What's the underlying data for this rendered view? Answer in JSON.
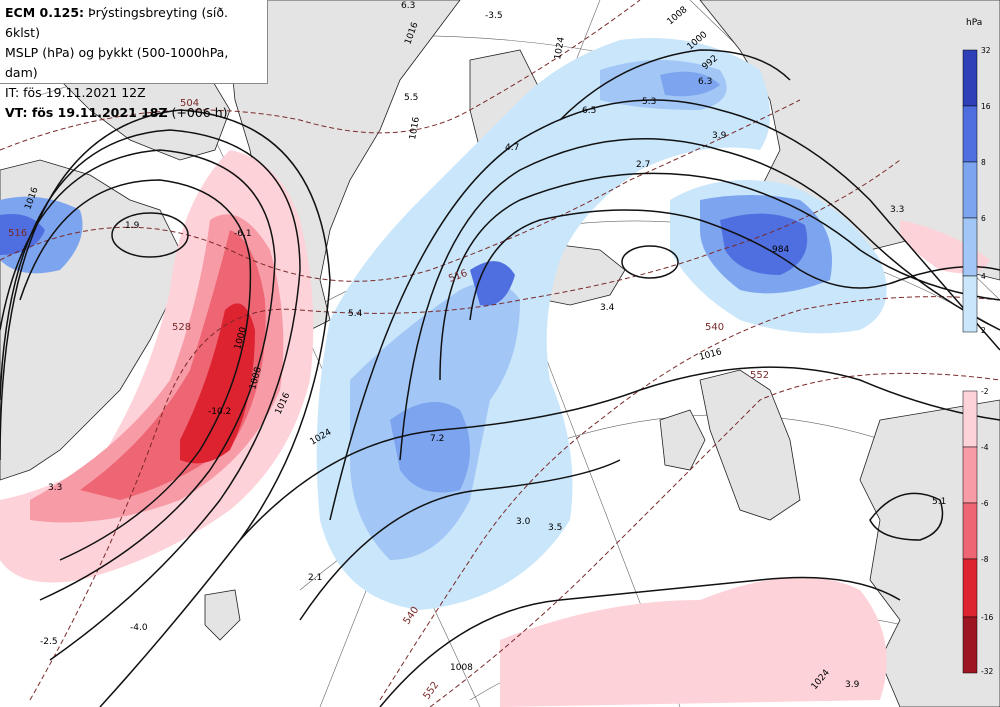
{
  "header": {
    "model": "ECM 0.125:",
    "subtitle": " Þrýstingsbreyting (síð. 6klst)",
    "line2": "MSLP (hPa) og þykkt (500-1000hPa, dam)",
    "line3": "IT: fös 19.11.2021 12Z",
    "vt_label": "VT: fös 19.11.2021 18Z",
    "vt_offset": " (+006 h)"
  },
  "legend": {
    "unit": "hPa",
    "blue": [
      {
        "label": "32",
        "color": "#2e3fb8"
      },
      {
        "label": "16",
        "color": "#4f6fe0"
      },
      {
        "label": "8",
        "color": "#7da4ee"
      },
      {
        "label": "6",
        "color": "#a2c6f5"
      },
      {
        "label": "4",
        "color": "#c9e6fb"
      },
      {
        "label": "2",
        "color": "#c9e6fb"
      }
    ],
    "red": [
      {
        "label": "-2",
        "color": "#fdd2d8"
      },
      {
        "label": "-4",
        "color": "#f79ba6"
      },
      {
        "label": "-6",
        "color": "#ee6674"
      },
      {
        "label": "-8",
        "color": "#dd2230"
      },
      {
        "label": "-16",
        "color": "#9d1522"
      },
      {
        "label": "-32",
        "color": "#9d1522"
      }
    ]
  },
  "colors": {
    "land": "#e4e4e4",
    "sea": "#ffffff",
    "isobar": "#111111",
    "thickness": "#7a2a2a"
  },
  "labels": {
    "isobars": [
      "1016",
      "1008",
      "1000",
      "992",
      "1000",
      "1008",
      "1016",
      "1024",
      "1016",
      "1024",
      "1008",
      "1016",
      "1016",
      "1024",
      "984"
    ],
    "thickness": [
      "504",
      "516",
      "528",
      "516",
      "540",
      "552",
      "540",
      "552"
    ],
    "changes": [
      "6.5",
      "5.3",
      "6.3",
      "3.9",
      "2.7",
      "4.7",
      "5.5",
      "3.3",
      "3.4",
      "5.4",
      "-6.1",
      "-10.2",
      "7.2",
      "3.0",
      "3.5",
      "2.1",
      "-4.0",
      "-2.5",
      "1.9",
      "5.1",
      "3.9",
      "3.3",
      "6.3",
      "-3.5"
    ]
  }
}
